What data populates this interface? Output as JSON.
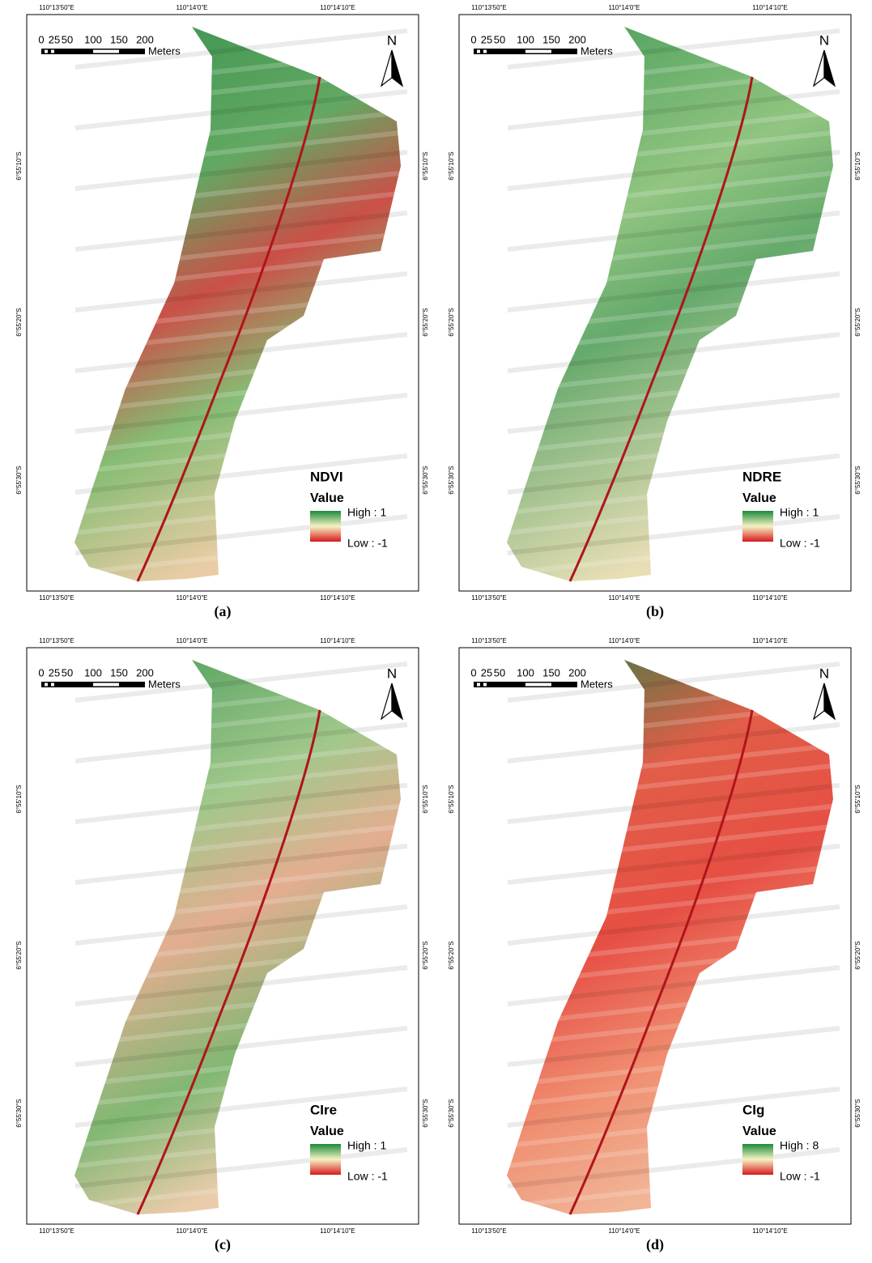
{
  "graticule": {
    "longitudes": [
      "110°13'50\"E",
      "110°14'0\"E",
      "110°14'10\"E"
    ],
    "latitudes": [
      "6°55'10\"S",
      "6°55'20\"S",
      "6°55'30\"S"
    ]
  },
  "scale_bar": {
    "ticks": [
      0,
      25,
      50,
      100,
      150,
      200
    ],
    "unit": "Meters"
  },
  "north": "N",
  "legend_title": "Value",
  "panels": [
    {
      "index": "NDVI",
      "high": "High : 1",
      "low": "Low : -1",
      "caption": "(a)"
    },
    {
      "index": "NDRE",
      "high": "High : 1",
      "low": "Low : -1",
      "caption": "(b)"
    },
    {
      "index": "CIre",
      "high": "High : 1",
      "low": "Low : -1",
      "caption": "(c)"
    },
    {
      "index": "CIg",
      "high": "High : 8",
      "low": "Low : -1",
      "caption": "(d)"
    }
  ]
}
